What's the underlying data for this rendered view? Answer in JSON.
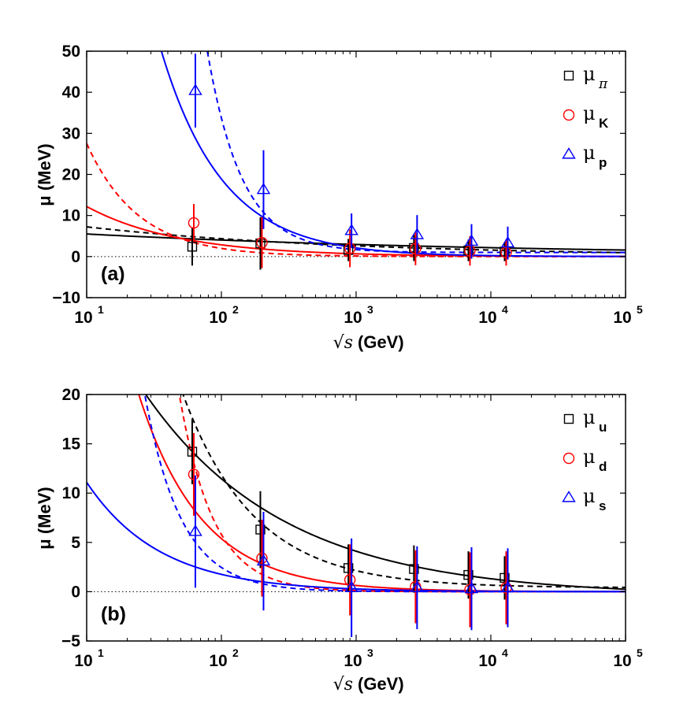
{
  "chart_data": [
    {
      "panel_label": "(a)",
      "type": "scatter",
      "xscale": "log",
      "xlim": [
        10,
        100000
      ],
      "ylim": [
        -10,
        50
      ],
      "yticks": [
        "−10",
        "0",
        "10",
        "20",
        "30",
        "40",
        "50"
      ],
      "xticks": [
        {
          "base": "10",
          "exp": "1"
        },
        {
          "base": "10",
          "exp": "2"
        },
        {
          "base": "10",
          "exp": "3"
        },
        {
          "base": "10",
          "exp": "4"
        },
        {
          "base": "10",
          "exp": "5"
        }
      ],
      "xlabel_prefix": "√s",
      "xlabel": "(GeV)",
      "ylabel": "μ (MeV)",
      "reference_line": 0,
      "legend_position": "top-right",
      "series": [
        {
          "name": "μπ",
          "legend_main": "μ",
          "legend_sub": "π",
          "color": "#000000",
          "marker": "square",
          "x": [
            62.4,
            200,
            900,
            2760,
            7000,
            13000
          ],
          "y": [
            2.4,
            3.2,
            1.6,
            2.1,
            1.5,
            1.2
          ],
          "err": [
            4.6,
            6.4,
            2.7,
            3.2,
            2.6,
            2.3
          ],
          "fit_solid": {
            "A": 7.5,
            "p": 0.135,
            "c": 0.0
          },
          "fit_dashed": {
            "A": 12.0,
            "p": 0.22,
            "c": 0.0
          }
        },
        {
          "name": "μK",
          "legend_main": "μ",
          "legend_sub": "K",
          "color": "#ff0000",
          "marker": "circle",
          "x": [
            62.4,
            200,
            900,
            2760,
            7000,
            13000
          ],
          "y": [
            8.2,
            3.4,
            2.0,
            1.9,
            1.4,
            1.0
          ],
          "err": [
            4.6,
            6.2,
            4.6,
            4.0,
            3.6,
            3.2
          ],
          "fit_solid": {
            "A": 52.0,
            "p": 0.63,
            "c": 0.0
          },
          "fit_dashed": {
            "A": 380.0,
            "p": 1.14,
            "c": 0.0
          }
        },
        {
          "name": "μp",
          "legend_main": "μ",
          "legend_sub": "p",
          "color": "#0000ff",
          "marker": "triangle",
          "x": [
            62.4,
            200,
            900,
            2760,
            7000,
            13000
          ],
          "y": [
            40.4,
            16.3,
            6.3,
            5.3,
            3.7,
            3.3
          ],
          "err": [
            9.0,
            9.6,
            4.2,
            4.8,
            4.2,
            4.0
          ],
          "fit_solid": {
            "A": 1500.0,
            "p": 0.95,
            "c": 0.0
          },
          "fit_dashed": {
            "A": 75000.0,
            "p": 1.68,
            "c": 1.0
          }
        }
      ]
    },
    {
      "panel_label": "(b)",
      "type": "scatter",
      "xscale": "log",
      "xlim": [
        10,
        100000
      ],
      "ylim": [
        -5,
        20
      ],
      "yticks": [
        "−5",
        "0",
        "5",
        "10",
        "15",
        "20"
      ],
      "xticks": [
        {
          "base": "10",
          "exp": "1"
        },
        {
          "base": "10",
          "exp": "2"
        },
        {
          "base": "10",
          "exp": "3"
        },
        {
          "base": "10",
          "exp": "4"
        },
        {
          "base": "10",
          "exp": "5"
        }
      ],
      "xlabel_prefix": "√s",
      "xlabel": "(GeV)",
      "ylabel": "μ (MeV)",
      "reference_line": 0,
      "legend_position": "top-right",
      "series": [
        {
          "name": "μu",
          "legend_main": "μ",
          "legend_sub": "u",
          "color": "#000000",
          "marker": "square",
          "x": [
            62.4,
            200,
            900,
            2760,
            7000,
            13000
          ],
          "y": [
            14.2,
            6.3,
            2.4,
            2.3,
            1.7,
            1.4
          ],
          "err": [
            3.3,
            3.9,
            2.4,
            2.4,
            2.4,
            2.2
          ],
          "fit_solid": {
            "A": 82.0,
            "p": 0.42,
            "c": -0.4
          },
          "fit_dashed": {
            "A": 500.0,
            "p": 0.82,
            "c": 0.4
          }
        },
        {
          "name": "μd",
          "legend_main": "μ",
          "legend_sub": "d",
          "color": "#ff0000",
          "marker": "circle",
          "x": [
            62.4,
            200,
            900,
            2760,
            7000,
            13000
          ],
          "y": [
            11.9,
            3.4,
            1.2,
            0.5,
            0.2,
            0.4
          ],
          "err": [
            4.2,
            3.9,
            3.6,
            3.7,
            3.8,
            3.7
          ],
          "fit_solid": {
            "A": 390.0,
            "p": 0.93,
            "c": 0.0
          },
          "fit_dashed": {
            "A": 16000.0,
            "p": 1.72,
            "c": 0.0
          }
        },
        {
          "name": "μs",
          "legend_main": "μ",
          "legend_sub": "s",
          "color": "#0000ff",
          "marker": "triangle",
          "x": [
            62.4,
            200,
            900,
            2760,
            7000,
            13000
          ],
          "y": [
            6.1,
            3.1,
            0.4,
            0.4,
            0.3,
            0.4
          ],
          "err": [
            5.7,
            5.0,
            5.0,
            4.2,
            4.2,
            4.0
          ],
          "fit_solid": {
            "A": 70.0,
            "p": 0.8,
            "c": 0.0
          },
          "fit_dashed": {
            "A": 3900.0,
            "p": 1.6,
            "c": 0.0
          }
        }
      ]
    }
  ]
}
